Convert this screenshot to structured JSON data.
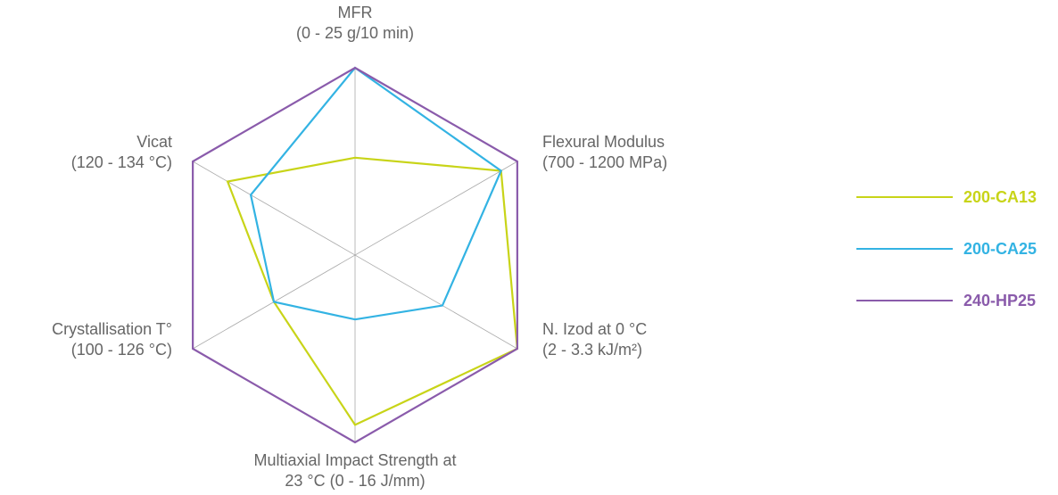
{
  "chart_data": {
    "type": "radar",
    "axes": [
      {
        "line1": "MFR",
        "line2": "(0 - 25 g/10 min)",
        "min": 0,
        "max": 25,
        "unit": "g/10 min"
      },
      {
        "line1": "Flexural Modulus",
        "line2": "(700 - 1200 MPa)",
        "min": 700,
        "max": 1200,
        "unit": "MPa"
      },
      {
        "line1": "N. Izod at 0 °C",
        "line2": "(2 - 3.3 kJ/m²)",
        "min": 2,
        "max": 3.3,
        "unit": "kJ/m²"
      },
      {
        "line1": "Multiaxial Impact Strength at",
        "line2": "23 °C (0 - 16 J/mm)",
        "min": 0,
        "max": 16,
        "unit": "J/mm"
      },
      {
        "line1": "Crystallisation T°",
        "line2": "(100 - 126 °C)",
        "min": 100,
        "max": 126,
        "unit": "°C"
      },
      {
        "line1": "Vicat",
        "line2": "(120 - 134 °C)",
        "min": 120,
        "max": 134,
        "unit": "°C"
      }
    ],
    "series": [
      {
        "name": "200-CA13",
        "color": "#c8d418",
        "values": [
          13,
          1150,
          3.3,
          14.5,
          113,
          131
        ]
      },
      {
        "name": "200-CA25",
        "color": "#33b3e3",
        "values": [
          25,
          1150,
          2.7,
          5.5,
          113,
          129
        ]
      },
      {
        "name": "240-HP25",
        "color": "#8a5bab",
        "values": [
          25,
          1200,
          3.3,
          16,
          126,
          134
        ]
      }
    ],
    "grid": true,
    "legend_position": "right"
  }
}
